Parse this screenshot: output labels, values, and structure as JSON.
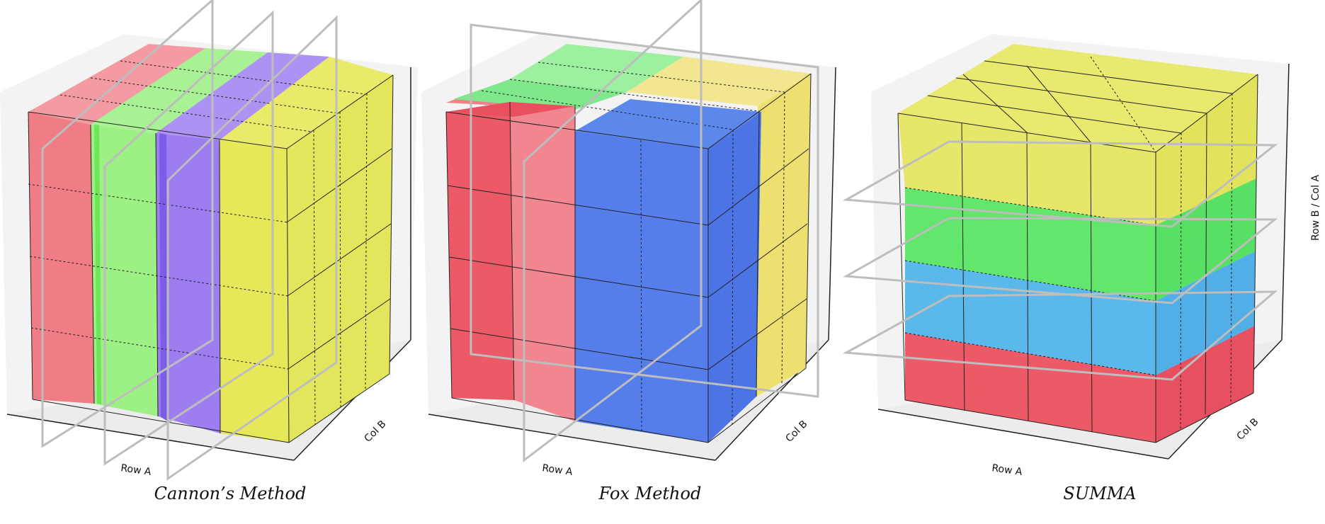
{
  "panels": [
    {
      "id": "cannon",
      "caption": "Cannon’s Method",
      "axes": {
        "x": "Row A",
        "y": "Col B",
        "z": ""
      },
      "partitioning": "vertical slabs along Row A",
      "slab_colors": [
        "#f06c78",
        "#8ef07a",
        "#9b7cf0",
        "#e6e64e"
      ]
    },
    {
      "id": "fox",
      "caption": "Fox Method",
      "axes": {
        "x": "Row A",
        "y": "Col B",
        "z": ""
      },
      "partitioning": "quadrant blocks",
      "block_colors": [
        "#ee5a66",
        "#f2808a",
        "#8ef07a",
        "#f0e36a",
        "#4e7ef0"
      ]
    },
    {
      "id": "summa",
      "caption": "SUMMA",
      "axes": {
        "x": "Row A",
        "y": "Col B",
        "z": "Row B / Col A"
      },
      "partitioning": "horizontal layers",
      "layer_colors": [
        "#ee5a66",
        "#5ab8ee",
        "#5ee66a",
        "#e6e64e"
      ]
    }
  ]
}
